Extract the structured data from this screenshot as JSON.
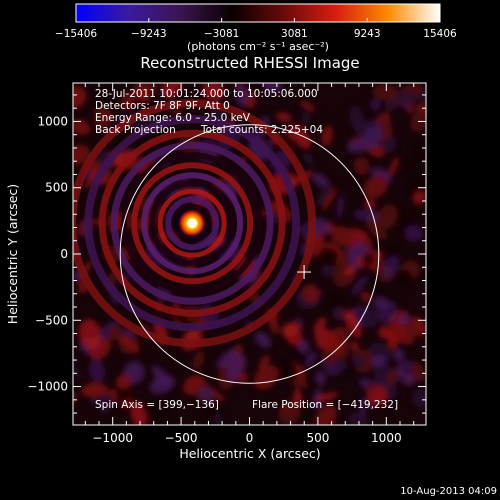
{
  "chart_data": {
    "type": "heatmap",
    "title": "Reconstructed RHESSI Image",
    "xlabel": "Heliocentric X (arcsec)",
    "ylabel": "Heliocentric Y (arcsec)",
    "xlim": [
      -1290,
      1290
    ],
    "ylim": [
      -1290,
      1290
    ],
    "x_ticks": [
      -1000,
      -500,
      0,
      500,
      1000
    ],
    "y_ticks": [
      -1000,
      -500,
      0,
      500,
      1000
    ],
    "x_tick_labels": [
      "−1000",
      "−500",
      "0",
      "500",
      "1000"
    ],
    "y_tick_labels": [
      "−1000",
      "−500",
      "0",
      "500",
      "1000"
    ],
    "colorbar": {
      "min": -15406,
      "max": 15406,
      "tick_labels": [
        "−15406",
        "−9243",
        "−3081",
        "3081",
        "9243",
        "15406"
      ],
      "unit_text": "(photons cm⁻² s⁻¹ asec⁻²)"
    },
    "annotations": [
      "28-Jul-2011 10:01:24.000 to 10:05:06.000",
      "Detectors: 7F 8F 9F, Att 0",
      "Energy Range: 6.0 – 25.0 keV",
      "Back Projection",
      "Total counts: 2.225+04"
    ],
    "spin_axis_text": "Spin Axis = [399,−136]",
    "flare_position_text": "Flare Position = [−419,232]",
    "spin_axis": [
      399,
      -136
    ],
    "flare_position": [
      -419,
      232
    ],
    "solar_disk": {
      "center": [
        0,
        0
      ],
      "radius_arcsec": 945
    },
    "footer_date": "10-Aug-2013 04:09"
  },
  "colors": {
    "colormap": [
      "#0000ff",
      "#3a1aa0",
      "#3b1550",
      "#0a0000",
      "#6a0a0a",
      "#d81e10",
      "#ff8a00",
      "#ffffff"
    ],
    "frame": "#ffffff",
    "background": "#000000"
  }
}
